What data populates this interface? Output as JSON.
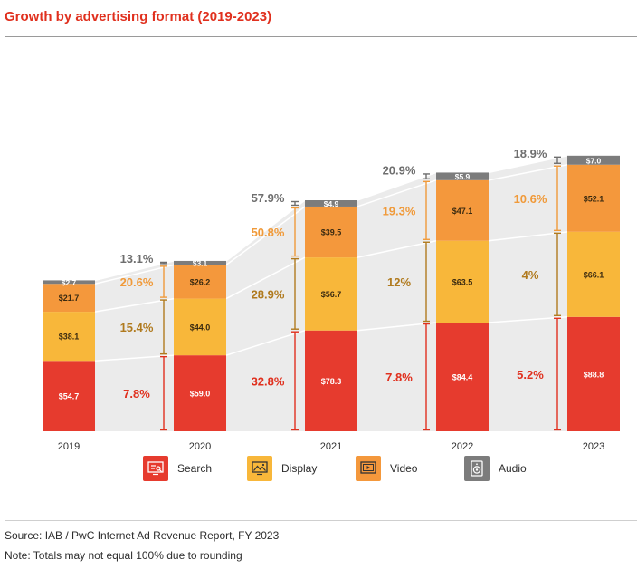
{
  "title": "Growth by advertising format (2019-2023)",
  "source": "Source: IAB / PwC Internet Ad Revenue Report, FY 2023",
  "note": "Note: Totals may not equal 100% due to rounding",
  "colors": {
    "search": "#e63b2e",
    "display": "#f8b73a",
    "video": "#f4983c",
    "audio": "#7c7c7c",
    "ribbon": "#ebebeb"
  },
  "legend": [
    {
      "label": "Search",
      "icon": "search-monitor-icon",
      "color": "#e63b2e"
    },
    {
      "label": "Display",
      "icon": "display-image-icon",
      "color": "#f8b73a"
    },
    {
      "label": "Video",
      "icon": "video-player-icon",
      "color": "#f4983c"
    },
    {
      "label": "Audio",
      "icon": "audio-speaker-icon",
      "color": "#7c7c7c"
    }
  ],
  "chart_data": {
    "type": "bar",
    "stacked": true,
    "categories": [
      "2019",
      "2020",
      "2021",
      "2022",
      "2023"
    ],
    "series": [
      {
        "name": "Search",
        "values": [
          54.7,
          59.0,
          78.3,
          84.4,
          88.8
        ],
        "labels": [
          "$54.7",
          "$59.0",
          "$78.3",
          "$84.4",
          "$88.8"
        ]
      },
      {
        "name": "Display",
        "values": [
          38.1,
          44.0,
          56.7,
          63.5,
          66.1
        ],
        "labels": [
          "$38.1",
          "$44.0",
          "$56.7",
          "$63.5",
          "$66.1"
        ]
      },
      {
        "name": "Video",
        "values": [
          21.7,
          26.2,
          39.5,
          47.1,
          52.1
        ],
        "labels": [
          "$21.7",
          "$26.2",
          "$39.5",
          "$47.1",
          "$52.1"
        ]
      },
      {
        "name": "Audio",
        "values": [
          2.7,
          3.1,
          4.9,
          5.9,
          7.0
        ],
        "labels": [
          "$2.7",
          "$3.1",
          "$4.9",
          "$5.9",
          "$7.0"
        ]
      }
    ],
    "growth": [
      {
        "search": "7.8%",
        "display": "15.4%",
        "video": "20.6%",
        "audio": "13.1%"
      },
      {
        "search": "32.8%",
        "display": "28.9%",
        "video": "50.8%",
        "audio": "57.9%"
      },
      {
        "search": "7.8%",
        "display": "12%",
        "video": "19.3%",
        "audio": "20.9%"
      },
      {
        "search": "5.2%",
        "display": "4%",
        "video": "10.6%",
        "audio": "18.9%"
      }
    ],
    "growth_colors": {
      "search": "#e0301e",
      "display": "#b07a1e",
      "video": "#f09a3a",
      "audio": "#6e6e6e"
    }
  }
}
